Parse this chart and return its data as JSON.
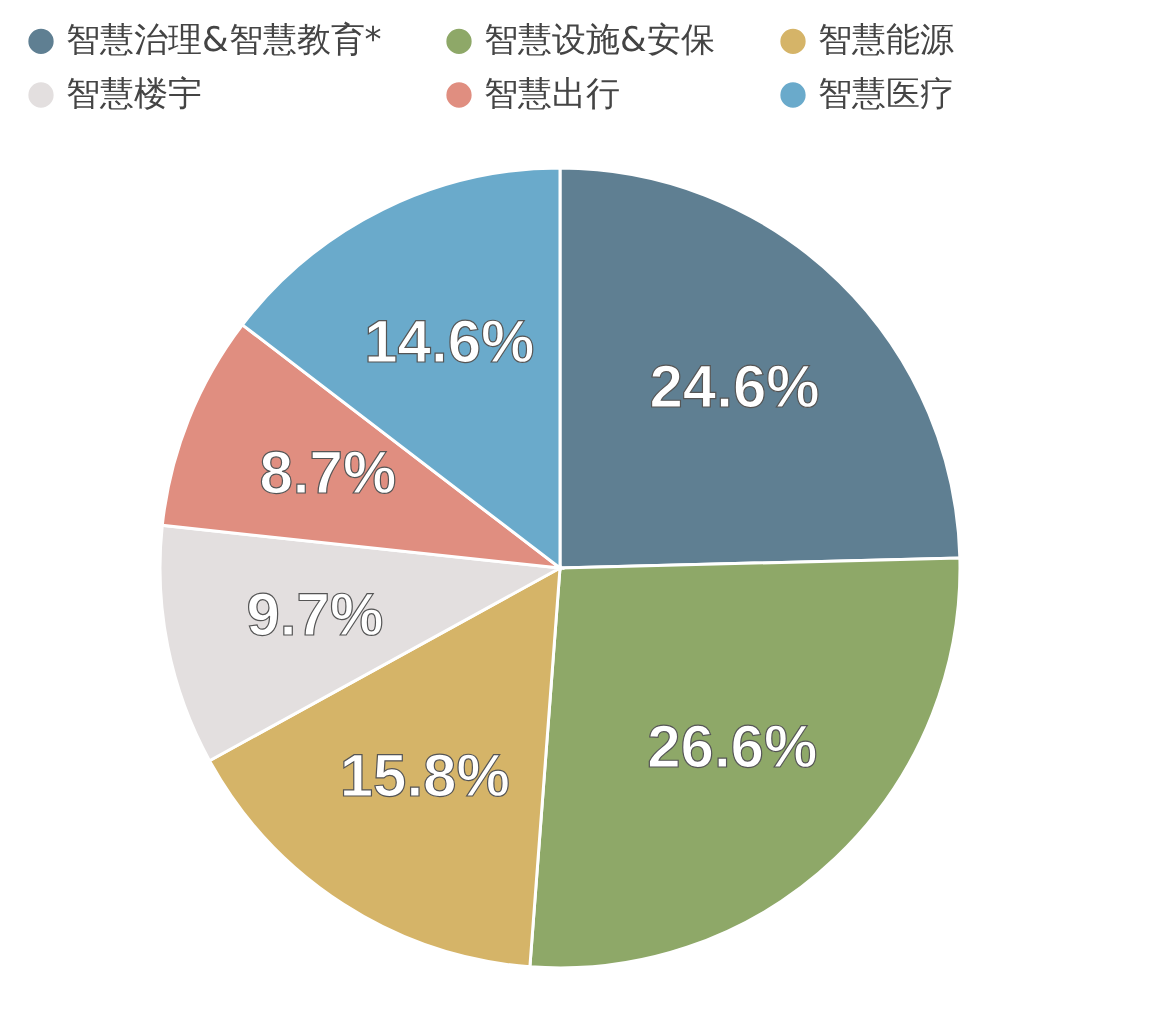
{
  "chart_data": {
    "type": "pie",
    "categories": [
      "智慧治理&智慧教育*",
      "智慧设施&安保",
      "智慧能源",
      "智慧楼宇",
      "智慧出行",
      "智慧医疗"
    ],
    "values": [
      24.6,
      26.6,
      15.8,
      9.7,
      8.7,
      14.6
    ],
    "colors": [
      "#5f7f92",
      "#8ea868",
      "#d5b468",
      "#e3dfdf",
      "#e08e80",
      "#6aaacb"
    ],
    "value_labels": [
      "24.6%",
      "26.6%",
      "15.8%",
      "9.7%",
      "8.7%",
      "14.6%"
    ],
    "legend": "top"
  }
}
